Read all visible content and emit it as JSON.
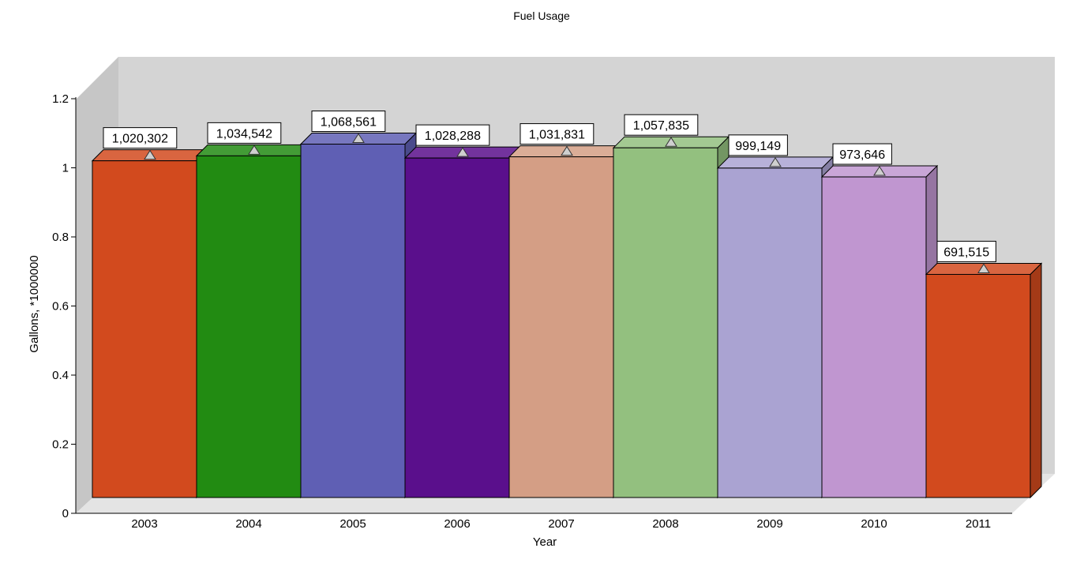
{
  "chart_data": {
    "type": "bar",
    "title": "Fuel Usage",
    "xlabel": "Year",
    "ylabel": "Gallons, *1000000",
    "ylim": [
      0,
      1.2
    ],
    "yticks": [
      0,
      0.2,
      0.4,
      0.6,
      0.8,
      1,
      1.2
    ],
    "ytick_labels": [
      "0",
      "0.2",
      "0.4",
      "0.6",
      "0.8",
      "1",
      "1.2"
    ],
    "categories": [
      "2003",
      "2004",
      "2005",
      "2006",
      "2007",
      "2008",
      "2009",
      "2010",
      "2011"
    ],
    "values": [
      1.020302,
      1.034542,
      1.068561,
      1.028288,
      1.031831,
      1.057835,
      0.999149,
      0.973646,
      0.691515
    ],
    "data_labels": [
      "1,020,302",
      "1,034,542",
      "1,068,561",
      "1,028,288",
      "1,031,831",
      "1,057,835",
      "999,149",
      "973,646",
      "691,515"
    ],
    "colors": [
      "#D24A1E",
      "#228B12",
      "#5F5FB4",
      "#5A0F8C",
      "#D49E85",
      "#93C07F",
      "#AAA3D2",
      "#C096D0",
      "#D24A1E"
    ],
    "legend": "none",
    "grid": false,
    "style": "3d"
  }
}
